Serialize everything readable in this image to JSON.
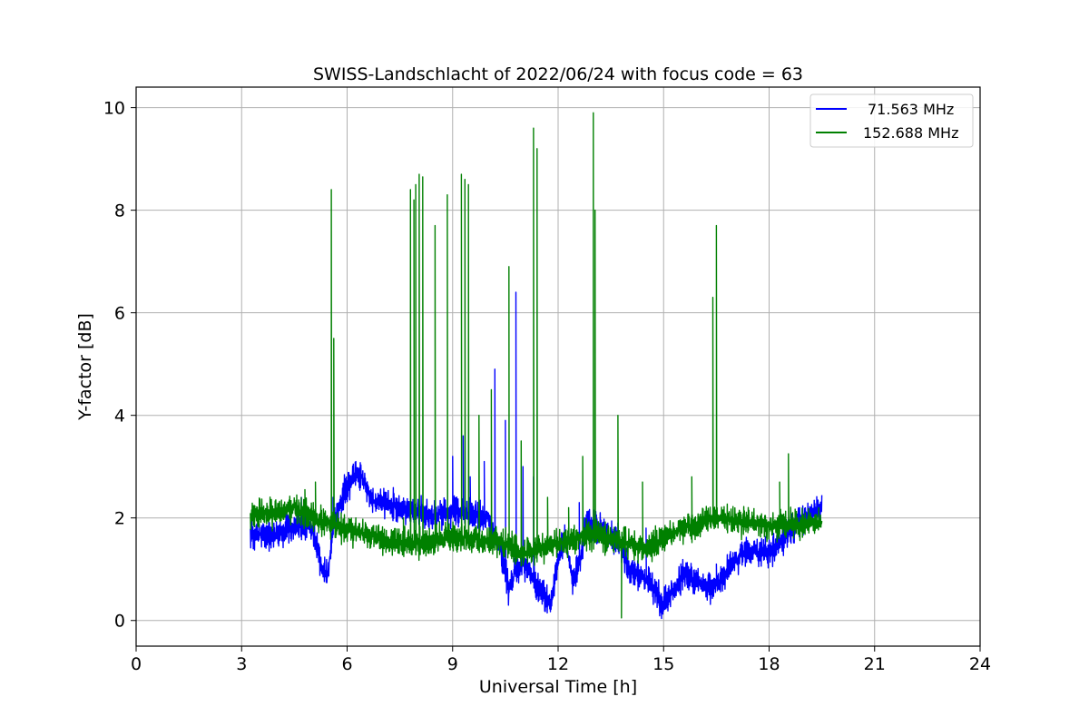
{
  "chart_data": {
    "type": "line",
    "title": "SWISS-Landschlacht of 2022/06/24 with focus code = 63",
    "xlabel": "Universal Time [h]",
    "ylabel": "Y-factor [dB]",
    "xlim": [
      0,
      24
    ],
    "ylim": [
      -0.5,
      10.4
    ],
    "xticks": [
      0,
      3,
      6,
      9,
      12,
      15,
      18,
      21,
      24
    ],
    "yticks": [
      0,
      2,
      4,
      6,
      8,
      10
    ],
    "grid": true,
    "legend_position": "top-right",
    "series": [
      {
        "name": "71.563 MHz",
        "color": "#0000ff",
        "baseline": [
          [
            3.25,
            1.7
          ],
          [
            3.6,
            1.65
          ],
          [
            4.0,
            1.7
          ],
          [
            4.5,
            1.85
          ],
          [
            5.0,
            1.8
          ],
          [
            5.2,
            1.3
          ],
          [
            5.3,
            1.0
          ],
          [
            5.45,
            0.9
          ],
          [
            5.6,
            1.8
          ],
          [
            5.8,
            2.3
          ],
          [
            6.0,
            2.6
          ],
          [
            6.3,
            2.9
          ],
          [
            6.5,
            2.7
          ],
          [
            6.7,
            2.3
          ],
          [
            7.0,
            2.3
          ],
          [
            7.5,
            2.2
          ],
          [
            8.0,
            2.1
          ],
          [
            8.5,
            2.05
          ],
          [
            9.0,
            2.1
          ],
          [
            9.5,
            2.1
          ],
          [
            10.0,
            2.0
          ],
          [
            10.4,
            1.3
          ],
          [
            10.6,
            0.6
          ],
          [
            10.8,
            1.0
          ],
          [
            11.0,
            1.1
          ],
          [
            11.2,
            0.9
          ],
          [
            11.6,
            0.5
          ],
          [
            11.8,
            0.3
          ],
          [
            12.0,
            1.2
          ],
          [
            12.2,
            1.6
          ],
          [
            12.4,
            0.8
          ],
          [
            12.6,
            1.1
          ],
          [
            12.8,
            1.9
          ],
          [
            13.2,
            1.8
          ],
          [
            13.5,
            1.6
          ],
          [
            13.8,
            1.5
          ],
          [
            14.0,
            1.0
          ],
          [
            14.5,
            0.8
          ],
          [
            14.8,
            0.55
          ],
          [
            15.0,
            0.3
          ],
          [
            15.3,
            0.6
          ],
          [
            15.6,
            0.9
          ],
          [
            16.0,
            0.75
          ],
          [
            16.4,
            0.6
          ],
          [
            16.8,
            0.95
          ],
          [
            17.2,
            1.3
          ],
          [
            17.6,
            1.35
          ],
          [
            18.0,
            1.3
          ],
          [
            18.4,
            1.6
          ],
          [
            18.8,
            1.9
          ],
          [
            19.2,
            2.1
          ],
          [
            19.5,
            2.25
          ]
        ],
        "noise": 0.25,
        "spikes": [
          [
            4.7,
            2.4
          ],
          [
            5.6,
            2.4
          ],
          [
            9.0,
            3.2
          ],
          [
            9.3,
            3.6
          ],
          [
            9.5,
            2.8
          ],
          [
            9.9,
            3.1
          ],
          [
            10.2,
            4.9
          ],
          [
            10.5,
            3.9
          ],
          [
            10.8,
            6.4
          ],
          [
            11.0,
            3.0
          ],
          [
            11.3,
            2.8
          ],
          [
            12.6,
            2.3
          ],
          [
            13.7,
            1.9
          ],
          [
            14.5,
            1.8
          ],
          [
            16.5,
            1.1
          ]
        ]
      },
      {
        "name": "152.688 MHz",
        "color": "#008000",
        "baseline": [
          [
            3.25,
            2.05
          ],
          [
            4.0,
            2.1
          ],
          [
            4.5,
            2.2
          ],
          [
            5.0,
            2.0
          ],
          [
            5.5,
            1.9
          ],
          [
            6.0,
            1.8
          ],
          [
            6.5,
            1.7
          ],
          [
            7.0,
            1.6
          ],
          [
            7.5,
            1.5
          ],
          [
            8.0,
            1.5
          ],
          [
            8.5,
            1.55
          ],
          [
            9.0,
            1.65
          ],
          [
            9.5,
            1.6
          ],
          [
            10.0,
            1.55
          ],
          [
            10.5,
            1.5
          ],
          [
            11.0,
            1.3
          ],
          [
            11.5,
            1.4
          ],
          [
            12.0,
            1.5
          ],
          [
            12.5,
            1.6
          ],
          [
            13.0,
            1.7
          ],
          [
            13.5,
            1.6
          ],
          [
            14.0,
            1.5
          ],
          [
            14.5,
            1.4
          ],
          [
            15.0,
            1.6
          ],
          [
            15.5,
            1.8
          ],
          [
            16.0,
            1.9
          ],
          [
            16.5,
            2.0
          ],
          [
            17.0,
            1.95
          ],
          [
            17.5,
            1.9
          ],
          [
            18.0,
            1.85
          ],
          [
            18.5,
            1.85
          ],
          [
            19.0,
            1.9
          ],
          [
            19.5,
            1.9
          ]
        ],
        "noise": 0.25,
        "spikes": [
          [
            4.8,
            2.55
          ],
          [
            5.1,
            2.7
          ],
          [
            5.55,
            8.4
          ],
          [
            5.62,
            5.5
          ],
          [
            7.6,
            2.0
          ],
          [
            7.8,
            8.4
          ],
          [
            7.9,
            8.2
          ],
          [
            7.95,
            8.5
          ],
          [
            8.05,
            8.7
          ],
          [
            8.15,
            8.65
          ],
          [
            8.5,
            7.7
          ],
          [
            8.85,
            8.3
          ],
          [
            9.25,
            8.7
          ],
          [
            9.35,
            8.6
          ],
          [
            9.45,
            8.5
          ],
          [
            9.75,
            4.0
          ],
          [
            10.1,
            4.5
          ],
          [
            10.6,
            6.9
          ],
          [
            10.95,
            3.5
          ],
          [
            11.3,
            9.6
          ],
          [
            11.4,
            9.2
          ],
          [
            11.7,
            2.4
          ],
          [
            12.3,
            2.2
          ],
          [
            12.7,
            3.2
          ],
          [
            13.0,
            9.9
          ],
          [
            13.05,
            8.0
          ],
          [
            13.7,
            4.0
          ],
          [
            13.8,
            0.05
          ],
          [
            14.4,
            2.7
          ],
          [
            15.8,
            2.8
          ],
          [
            16.4,
            6.3
          ],
          [
            16.5,
            7.7
          ],
          [
            18.3,
            2.7
          ],
          [
            18.55,
            3.25
          ]
        ]
      }
    ]
  }
}
